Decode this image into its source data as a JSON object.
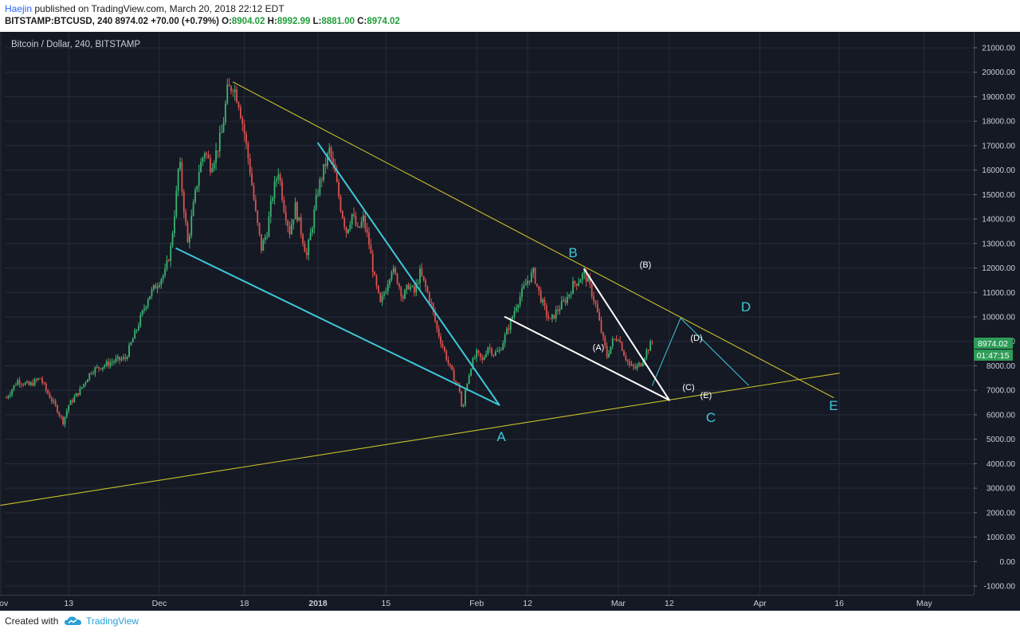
{
  "header": {
    "author": "Haejin",
    "published_text": " published on TradingView.com, March 20, 2018 22:12 EDT",
    "symbol": "BITSTAMP:BTCUSD, 240",
    "last": "8974.02",
    "change": "+70.00 (+0.79%)",
    "open_label": "O:",
    "open": "8904.02",
    "high_label": "H:",
    "high": "8992.99",
    "low_label": "L:",
    "low": "8881.00",
    "close_label": "C:",
    "close": "8974.02"
  },
  "chart_title": "Bitcoin / Dollar, 240, BITSTAMP",
  "price_badge": "8974.02",
  "time_badge": "01:47:15",
  "footer": {
    "created_with": "Created with",
    "brand": "TradingView"
  },
  "colors": {
    "background": "#151924",
    "grid": "#262c3a",
    "up": "#3cb371",
    "down": "#d9534f",
    "trend_yellow": "#c8c02a",
    "trend_cyan": "#3dc9d9",
    "trend_white": "#ffffff",
    "label_cyan": "#3dc9d9",
    "badge_green": "#2e9c57"
  },
  "chart_data": {
    "type": "candlestick",
    "title": "Bitcoin / Dollar, 240, BITSTAMP",
    "yticks": [
      "21000.00",
      "20000.00",
      "19000.00",
      "18000.00",
      "17000.00",
      "16000.00",
      "15000.00",
      "14000.00",
      "13000.00",
      "12000.00",
      "11000.00",
      "10000.00",
      "9000.00",
      "8000.00",
      "7000.00",
      "6000.00",
      "5000.00",
      "4000.00",
      "3000.00",
      "2000.00",
      "1000.00",
      "0.00",
      "-1000.00"
    ],
    "xticks": [
      "Nov",
      "13",
      "Dec",
      "18",
      "2018",
      "15",
      "Feb",
      "12",
      "Mar",
      "12",
      "Apr",
      "16",
      "May"
    ],
    "ylim": [
      -1000,
      21000
    ],
    "price_path_day_price": [
      [
        0,
        6700
      ],
      [
        2,
        7400
      ],
      [
        4,
        7200
      ],
      [
        6,
        7500
      ],
      [
        7,
        7000
      ],
      [
        9,
        6200
      ],
      [
        10,
        5700
      ],
      [
        11,
        6400
      ],
      [
        13,
        7000
      ],
      [
        15,
        7800
      ],
      [
        17,
        8000
      ],
      [
        19,
        8200
      ],
      [
        21,
        8300
      ],
      [
        23,
        9500
      ],
      [
        25,
        10800
      ],
      [
        27,
        11500
      ],
      [
        28,
        11800
      ],
      [
        29,
        12800
      ],
      [
        30,
        15000
      ],
      [
        30.5,
        16500
      ],
      [
        31,
        15200
      ],
      [
        32,
        13000
      ],
      [
        33,
        14500
      ],
      [
        34,
        16000
      ],
      [
        35,
        16800
      ],
      [
        36,
        16200
      ],
      [
        37,
        16700
      ],
      [
        38,
        17500
      ],
      [
        39,
        19200
      ],
      [
        40,
        19500
      ],
      [
        41,
        18800
      ],
      [
        42,
        17500
      ],
      [
        43,
        16000
      ],
      [
        44,
        14200
      ],
      [
        45,
        12800
      ],
      [
        46,
        13500
      ],
      [
        47,
        15000
      ],
      [
        48,
        16000
      ],
      [
        49,
        14500
      ],
      [
        50,
        13500
      ],
      [
        51,
        14500
      ],
      [
        52,
        13500
      ],
      [
        53,
        12500
      ],
      [
        54,
        13800
      ],
      [
        55,
        15200
      ],
      [
        56,
        16000
      ],
      [
        57,
        16800
      ],
      [
        58,
        15800
      ],
      [
        59,
        14500
      ],
      [
        60,
        13500
      ],
      [
        61,
        14200
      ],
      [
        62,
        13500
      ],
      [
        63,
        14000
      ],
      [
        64,
        13000
      ],
      [
        65,
        11500
      ],
      [
        66,
        10500
      ],
      [
        67,
        11200
      ],
      [
        68,
        12000
      ],
      [
        69,
        11500
      ],
      [
        70,
        10800
      ],
      [
        71,
        11300
      ],
      [
        72,
        11000
      ],
      [
        73,
        11800
      ],
      [
        74,
        11200
      ],
      [
        75,
        10500
      ],
      [
        76,
        9500
      ],
      [
        77,
        8800
      ],
      [
        78,
        8100
      ],
      [
        79,
        7500
      ],
      [
        80,
        7000
      ],
      [
        80.5,
        6000
      ],
      [
        81,
        7000
      ],
      [
        82,
        8000
      ],
      [
        83,
        8500
      ],
      [
        84,
        8200
      ],
      [
        85,
        8800
      ],
      [
        86,
        8500
      ],
      [
        87,
        8600
      ],
      [
        88,
        9200
      ],
      [
        89,
        9800
      ],
      [
        90,
        10500
      ],
      [
        91,
        11000
      ],
      [
        92,
        11500
      ],
      [
        93,
        11800
      ],
      [
        94,
        11000
      ],
      [
        95,
        10300
      ],
      [
        96,
        9800
      ],
      [
        97,
        10200
      ],
      [
        98,
        10500
      ],
      [
        99,
        10800
      ],
      [
        100,
        11300
      ],
      [
        101,
        11500
      ],
      [
        102,
        11800
      ],
      [
        103,
        11200
      ],
      [
        104,
        10500
      ],
      [
        105,
        9400
      ],
      [
        106,
        8400
      ],
      [
        107,
        9000
      ],
      [
        108,
        9200
      ],
      [
        109,
        8500
      ],
      [
        110,
        8000
      ],
      [
        111,
        7900
      ],
      [
        112,
        8100
      ],
      [
        113,
        8600
      ],
      [
        114,
        8974
      ]
    ],
    "annotations": [
      "A",
      "B",
      "C",
      "D",
      "E",
      "(A)",
      "(B)",
      "(C)",
      "(D)",
      "(E)"
    ],
    "trendlines": [
      {
        "color": "trend_yellow",
        "from": [
          40,
          19600
        ],
        "to": [
          146,
          6700
        ]
      },
      {
        "color": "trend_yellow",
        "from": [
          -1,
          2300
        ],
        "to": [
          147,
          7700
        ]
      },
      {
        "color": "trend_cyan",
        "from": [
          30,
          12800
        ],
        "to": [
          87,
          6400
        ]
      },
      {
        "color": "trend_cyan",
        "from": [
          55,
          17100
        ],
        "to": [
          87,
          6400
        ]
      },
      {
        "color": "trend_cyan",
        "from": [
          114,
          7200
        ],
        "to": [
          119,
          9950
        ]
      },
      {
        "color": "trend_cyan",
        "from": [
          119,
          9950
        ],
        "to": [
          131,
          7200
        ]
      },
      {
        "color": "trend_white",
        "from": [
          88,
          10000
        ],
        "to": [
          117,
          6600
        ]
      },
      {
        "color": "trend_white",
        "from": [
          102,
          11950
        ],
        "to": [
          117,
          6600
        ]
      }
    ]
  }
}
